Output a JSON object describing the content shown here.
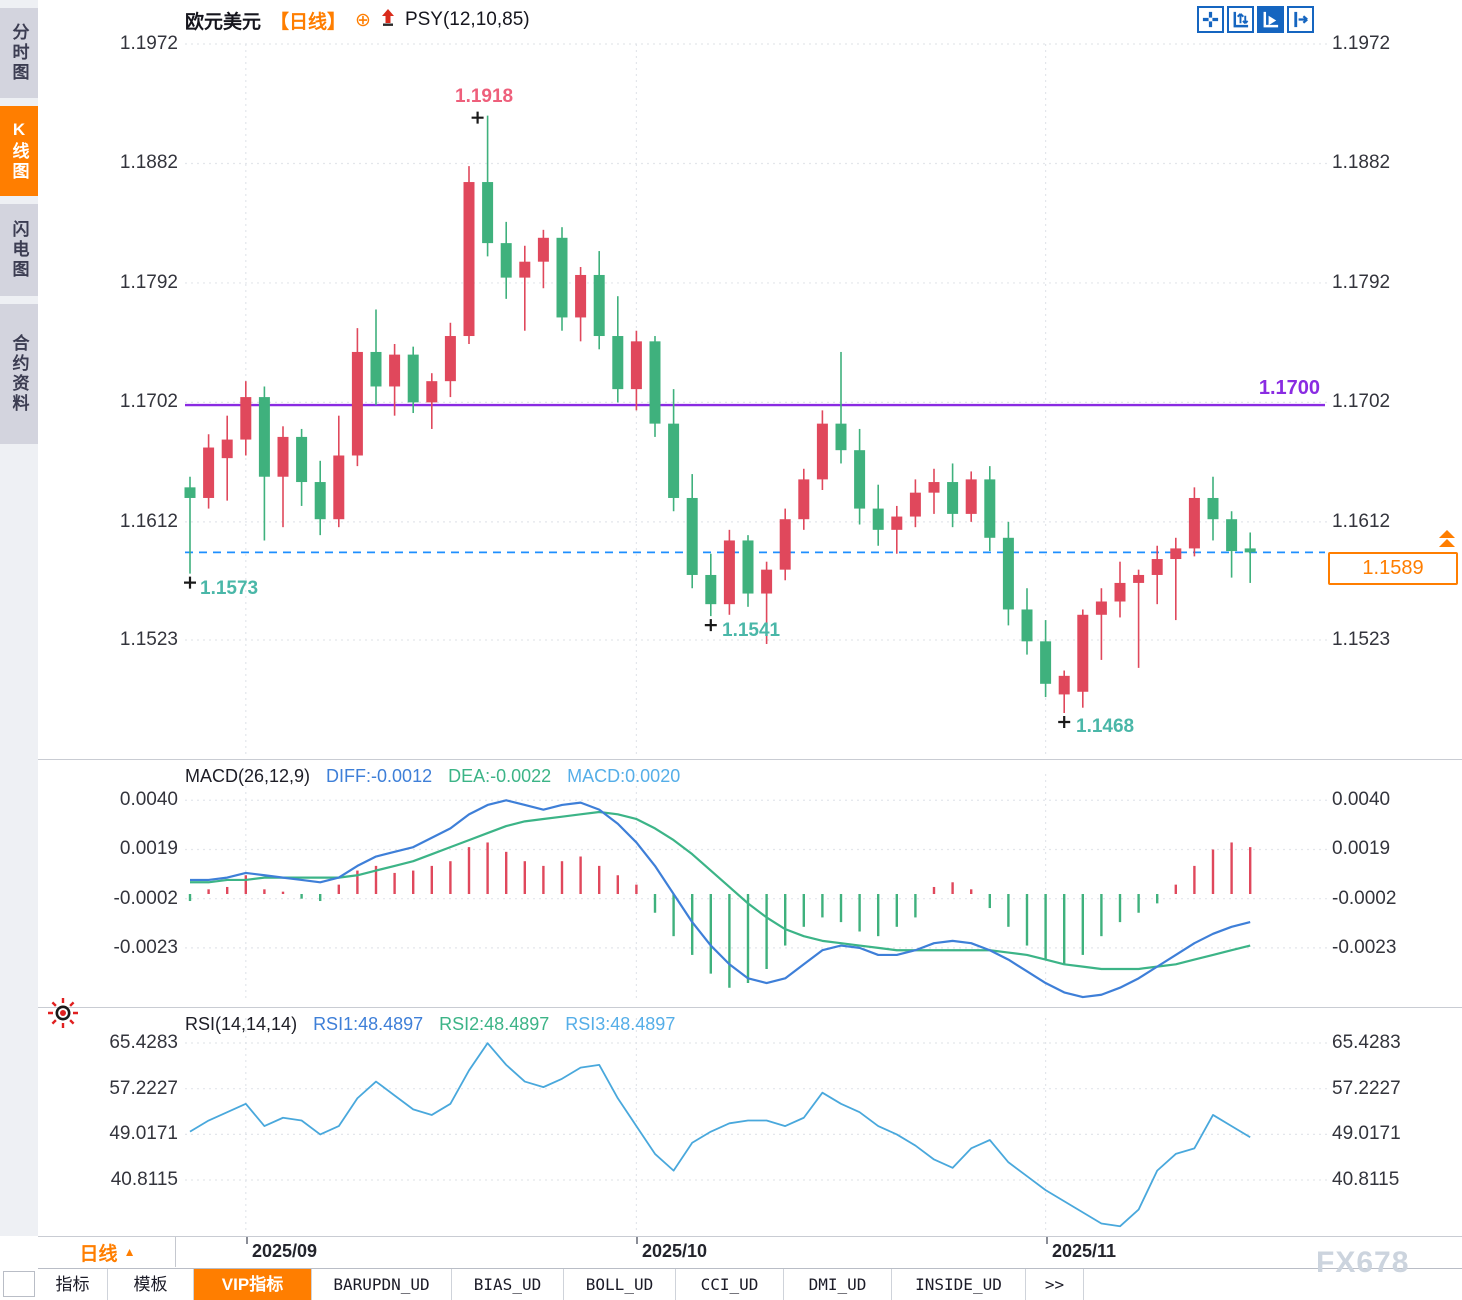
{
  "sidebar": {
    "items": [
      {
        "label": "分时图",
        "active": false
      },
      {
        "label": "K线图",
        "active": true
      },
      {
        "label": "闪电图",
        "active": false
      },
      {
        "label": "合约资料",
        "active": false
      }
    ]
  },
  "header": {
    "symbol": "欧元美元",
    "period": "【日线】",
    "link_icon": "⊕",
    "indicator": "PSY(12,10,85)"
  },
  "toolbar": {
    "icons": [
      "move-tool-icon",
      "fit-axis-icon",
      "auto-scroll-icon",
      "collapse-panel-icon"
    ]
  },
  "main_chart": {
    "y_axis_labels": [
      "1.1972",
      "1.1882",
      "1.1792",
      "1.1702",
      "1.1612",
      "1.1523"
    ],
    "annotations": [
      {
        "id": "high-september",
        "text": "1.1918",
        "color": "#ee5f7b"
      },
      {
        "id": "low-august",
        "text": "1.1573",
        "color": "#4ab7a8"
      },
      {
        "id": "low-october",
        "text": "1.1541",
        "color": "#4ab7a8"
      },
      {
        "id": "low-november",
        "text": "1.1468",
        "color": "#4ab7a8"
      }
    ],
    "hline_label": "1.1700",
    "price_tag": "1.1589"
  },
  "macd": {
    "title": "MACD(26,12,9)",
    "labels": {
      "diff": "DIFF:-0.0012",
      "dea": "DEA:-0.0022",
      "macd": "MACD:0.0020"
    },
    "y_axis_labels": [
      "0.0040",
      "0.0019",
      "-0.0002",
      "-0.0023"
    ]
  },
  "rsi": {
    "title": "RSI(14,14,14)",
    "labels": {
      "rsi1": "RSI1:48.4897",
      "rsi2": "RSI2:48.4897",
      "rsi3": "RSI3:48.4897"
    },
    "y_axis_labels": [
      "65.4283",
      "57.2227",
      "49.0171",
      "40.8115"
    ]
  },
  "time_axis": {
    "period_button": {
      "label": "日线",
      "arrow": "▲"
    },
    "months": [
      "2025/09",
      "2025/10",
      "2025/11"
    ]
  },
  "tabs": [
    {
      "label": "指标",
      "active": false,
      "mono": false
    },
    {
      "label": "模板",
      "active": false,
      "mono": false
    },
    {
      "label": "VIP指标",
      "active": true,
      "mono": false
    },
    {
      "label": "BARUPDN_UD",
      "active": false,
      "mono": true
    },
    {
      "label": "BIAS_UD",
      "active": false,
      "mono": true
    },
    {
      "label": "BOLL_UD",
      "active": false,
      "mono": true
    },
    {
      "label": "CCI_UD",
      "active": false,
      "mono": true
    },
    {
      "label": "DMI_UD",
      "active": false,
      "mono": true
    },
    {
      "label": "INSIDE_UD",
      "active": false,
      "mono": true
    },
    {
      "label": ">>",
      "active": false,
      "mono": true
    }
  ],
  "watermark": "FX678",
  "colors": {
    "accent_orange": "#ff7e00",
    "candle_up": "#e0485c",
    "candle_down": "#3fb17d",
    "hline_purple": "#8a2be2",
    "price_line_blue": "#1e8fff",
    "diff_blue": "#3e7fd8",
    "dea_green": "#3cb487",
    "macd_lightblue": "#55aee8",
    "rsi_blue": "#49a8dc",
    "grid": "#e3e6eb",
    "annotation_pink": "#ee5f7b",
    "annotation_teal": "#4ab7a8"
  },
  "chart_data": [
    {
      "type": "candlestick",
      "title": "欧元美元 日线 (EUR/USD daily)",
      "x_ticks": [
        "2025/09",
        "2025/10",
        "2025/11"
      ],
      "x_tick_indices": [
        3,
        24,
        46
      ],
      "y_ticks": [
        1.1972,
        1.1882,
        1.1792,
        1.1702,
        1.1612,
        1.1523
      ],
      "support_line": 1.17,
      "last_price": 1.1589,
      "marked": [
        {
          "index": 16,
          "price": 1.1918,
          "pos": "high"
        },
        {
          "index": 0,
          "price": 1.1573,
          "pos": "low"
        },
        {
          "index": 28,
          "price": 1.1541,
          "pos": "low"
        },
        {
          "index": 47,
          "price": 1.1468,
          "pos": "low"
        }
      ],
      "candles": [
        [
          1.1638,
          1.1646,
          1.1573,
          1.163
        ],
        [
          1.163,
          1.1678,
          1.1622,
          1.1668
        ],
        [
          1.166,
          1.1692,
          1.1628,
          1.1674
        ],
        [
          1.1674,
          1.1718,
          1.1662,
          1.1706
        ],
        [
          1.1706,
          1.1714,
          1.1598,
          1.1646
        ],
        [
          1.1646,
          1.1684,
          1.1608,
          1.1676
        ],
        [
          1.1676,
          1.1682,
          1.1624,
          1.1642
        ],
        [
          1.1642,
          1.1658,
          1.1602,
          1.1614
        ],
        [
          1.1614,
          1.1692,
          1.1608,
          1.1662
        ],
        [
          1.1662,
          1.1758,
          1.1654,
          1.174
        ],
        [
          1.174,
          1.1772,
          1.17,
          1.1714
        ],
        [
          1.1714,
          1.1746,
          1.1692,
          1.1738
        ],
        [
          1.1738,
          1.1744,
          1.1694,
          1.1702
        ],
        [
          1.1702,
          1.1724,
          1.1682,
          1.1718
        ],
        [
          1.1718,
          1.1762,
          1.1706,
          1.1752
        ],
        [
          1.1752,
          1.188,
          1.1746,
          1.1868
        ],
        [
          1.1868,
          1.1918,
          1.1812,
          1.1822
        ],
        [
          1.1822,
          1.1838,
          1.178,
          1.1796
        ],
        [
          1.1796,
          1.182,
          1.1756,
          1.1808
        ],
        [
          1.1808,
          1.1832,
          1.1788,
          1.1826
        ],
        [
          1.1826,
          1.1834,
          1.1756,
          1.1766
        ],
        [
          1.1766,
          1.1804,
          1.1748,
          1.1798
        ],
        [
          1.1798,
          1.1816,
          1.1742,
          1.1752
        ],
        [
          1.1752,
          1.1782,
          1.1702,
          1.1712
        ],
        [
          1.1712,
          1.1756,
          1.1696,
          1.1748
        ],
        [
          1.1748,
          1.1752,
          1.1676,
          1.1686
        ],
        [
          1.1686,
          1.1712,
          1.162,
          1.163
        ],
        [
          1.163,
          1.1648,
          1.1562,
          1.1572
        ],
        [
          1.1572,
          1.1588,
          1.1541,
          1.155
        ],
        [
          1.155,
          1.1606,
          1.1542,
          1.1598
        ],
        [
          1.1598,
          1.1602,
          1.1548,
          1.1558
        ],
        [
          1.1558,
          1.1582,
          1.152,
          1.1576
        ],
        [
          1.1576,
          1.1622,
          1.1568,
          1.1614
        ],
        [
          1.1614,
          1.1652,
          1.1606,
          1.1644
        ],
        [
          1.1644,
          1.1696,
          1.1636,
          1.1686
        ],
        [
          1.1686,
          1.174,
          1.1656,
          1.1666
        ],
        [
          1.1666,
          1.1682,
          1.161,
          1.1622
        ],
        [
          1.1622,
          1.164,
          1.1594,
          1.1606
        ],
        [
          1.1606,
          1.1624,
          1.1588,
          1.1616
        ],
        [
          1.1616,
          1.1644,
          1.1608,
          1.1634
        ],
        [
          1.1634,
          1.1652,
          1.1618,
          1.1642
        ],
        [
          1.1642,
          1.1656,
          1.1608,
          1.1618
        ],
        [
          1.1618,
          1.165,
          1.1612,
          1.1644
        ],
        [
          1.1644,
          1.1654,
          1.159,
          1.16
        ],
        [
          1.16,
          1.1612,
          1.1534,
          1.1546
        ],
        [
          1.1546,
          1.1562,
          1.1512,
          1.1522
        ],
        [
          1.1522,
          1.1538,
          1.148,
          1.149
        ],
        [
          1.1482,
          1.15,
          1.1468,
          1.1496
        ],
        [
          1.1484,
          1.1546,
          1.1472,
          1.1542
        ],
        [
          1.1542,
          1.1562,
          1.1508,
          1.1552
        ],
        [
          1.1552,
          1.1582,
          1.154,
          1.1566
        ],
        [
          1.1566,
          1.1576,
          1.1502,
          1.1572
        ],
        [
          1.1572,
          1.1594,
          1.155,
          1.1584
        ],
        [
          1.1584,
          1.16,
          1.1538,
          1.1592
        ],
        [
          1.1592,
          1.1638,
          1.1586,
          1.163
        ],
        [
          1.163,
          1.1646,
          1.1598,
          1.1614
        ],
        [
          1.1614,
          1.162,
          1.157,
          1.159
        ],
        [
          1.1592,
          1.1604,
          1.1566,
          1.1589
        ]
      ]
    },
    {
      "type": "bar+line",
      "name": "MACD(26,12,9)",
      "y_ticks": [
        0.004,
        0.0019,
        -0.0002,
        -0.0023
      ],
      "scale": 0.0001,
      "hist": [
        -3,
        2,
        3,
        8,
        2,
        1,
        -2,
        -3,
        4,
        10,
        12,
        9,
        10,
        12,
        14,
        20,
        22,
        18,
        14,
        12,
        14,
        16,
        12,
        8,
        4,
        -8,
        -18,
        -26,
        -34,
        -40,
        -38,
        -32,
        -22,
        -14,
        -10,
        -12,
        -16,
        -18,
        -14,
        -10,
        3,
        5,
        2,
        -6,
        -14,
        -22,
        -28,
        -30,
        -26,
        -18,
        -12,
        -8,
        -4,
        4,
        12,
        19,
        22,
        20
      ],
      "diff": [
        6,
        6,
        7,
        9,
        8,
        7,
        6,
        5,
        7,
        12,
        16,
        18,
        20,
        24,
        28,
        34,
        38,
        40,
        38,
        36,
        38,
        39,
        36,
        30,
        22,
        12,
        0,
        -12,
        -22,
        -30,
        -36,
        -38,
        -36,
        -30,
        -24,
        -22,
        -23,
        -26,
        -26,
        -24,
        -21,
        -20,
        -21,
        -24,
        -28,
        -33,
        -38,
        -42,
        -44,
        -43,
        -40,
        -36,
        -31,
        -26,
        -21,
        -17,
        -14,
        -12
      ],
      "dea": [
        5,
        5,
        6,
        6,
        7,
        7,
        7,
        7,
        7,
        8,
        10,
        12,
        14,
        17,
        20,
        23,
        26,
        29,
        31,
        32,
        33,
        34,
        35,
        34,
        32,
        28,
        23,
        17,
        10,
        3,
        -4,
        -10,
        -15,
        -18,
        -20,
        -21,
        -22,
        -23,
        -24,
        -24,
        -24,
        -24,
        -24,
        -24,
        -25,
        -26,
        -28,
        -30,
        -31,
        -32,
        -32,
        -32,
        -31,
        -30,
        -28,
        -26,
        -24,
        -22
      ]
    },
    {
      "type": "line",
      "name": "RSI(14,14,14)",
      "y_ticks": [
        65.4283,
        57.2227,
        49.0171,
        40.8115
      ],
      "values": [
        49.5,
        51.5,
        53.0,
        54.5,
        50.5,
        52.0,
        51.5,
        49.0,
        50.5,
        55.5,
        58.5,
        56.0,
        53.5,
        52.5,
        54.5,
        60.5,
        65.4,
        61.5,
        58.5,
        57.5,
        59.0,
        61.0,
        61.5,
        55.5,
        50.5,
        45.5,
        42.5,
        47.5,
        49.5,
        51.0,
        51.5,
        51.5,
        50.5,
        52.0,
        56.5,
        54.5,
        53.0,
        50.5,
        49.0,
        47.0,
        44.5,
        43.0,
        46.5,
        48.0,
        44.0,
        41.5,
        39.0,
        37.0,
        35.0,
        33.0,
        32.5,
        35.5,
        42.5,
        45.5,
        46.5,
        52.5,
        50.5,
        48.5
      ]
    }
  ]
}
